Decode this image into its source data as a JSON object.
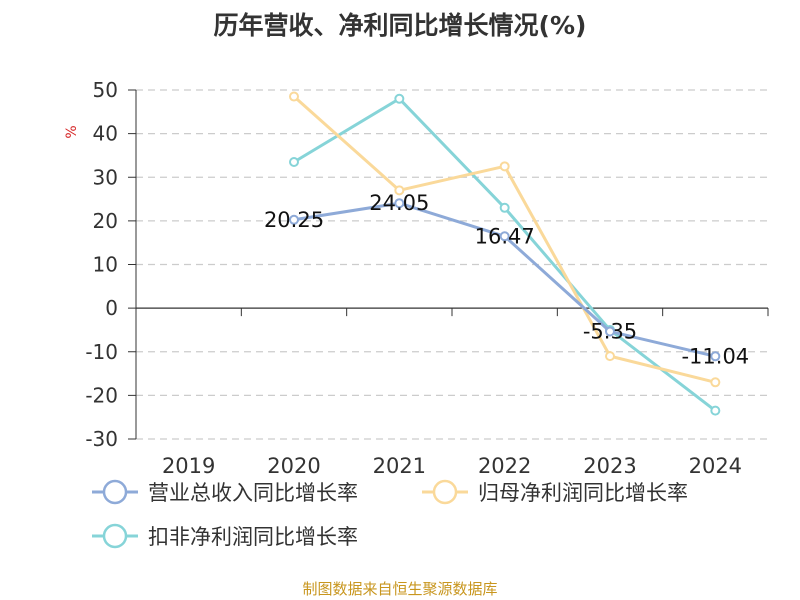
{
  "chart_data": {
    "type": "line",
    "title": "历年营收、净利同比增长情况(%)",
    "ylabel": "%",
    "xlabel": "",
    "categories": [
      "2019",
      "2020",
      "2021",
      "2022",
      "2023",
      "2024"
    ],
    "yticks": [
      "50",
      "40",
      "30",
      "20",
      "10",
      "0",
      "-10",
      "-20",
      "-30"
    ],
    "ylim": [
      -30,
      50
    ],
    "grid": true,
    "legend_position": "bottom",
    "series": [
      {
        "name": "营业总收入同比增长率",
        "color": "#8eaad8",
        "values": [
          null,
          20.25,
          24.05,
          16.47,
          -5.35,
          -11.04
        ],
        "labels": [
          null,
          "20.25",
          "24.05",
          "16.47",
          "-5.35",
          "-11.04"
        ]
      },
      {
        "name": "归母净利润同比增长率",
        "color": "#fad99a",
        "values": [
          null,
          48.5,
          27.0,
          32.5,
          -11.0,
          -17.0
        ]
      },
      {
        "name": "扣非净利润同比增长率",
        "color": "#86d4d8",
        "values": [
          null,
          33.5,
          48.0,
          23.0,
          -5.0,
          -23.5
        ]
      }
    ],
    "source": "制图数据来自恒生聚源数据库"
  }
}
